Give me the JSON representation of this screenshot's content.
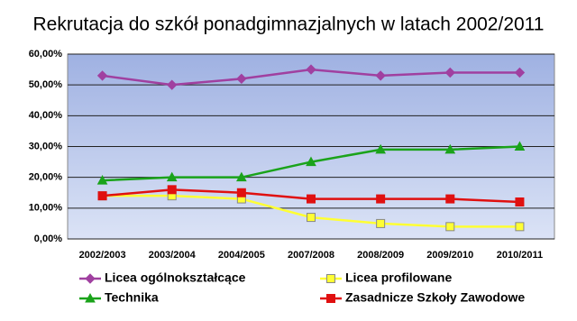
{
  "chart_data": {
    "type": "line",
    "title": "Rekrutacja  do szkół  ponadgimnazjalnych  w latach  2002/2011",
    "categories": [
      "2002/2003",
      "2003/2004",
      "2004/2005",
      "2007/2008",
      "2008/2009",
      "2009/2010",
      "2010/2011"
    ],
    "series": [
      {
        "name": "Licea ogólnokształcące",
        "color": "#a040a0",
        "marker": "diamond",
        "values": [
          53,
          50,
          52,
          55,
          53,
          54,
          54
        ]
      },
      {
        "name": "Licea profilowane",
        "color": "#ffff33",
        "marker": "square",
        "values": [
          14,
          14,
          13,
          7,
          5,
          4,
          4
        ]
      },
      {
        "name": "Technika",
        "color": "#1aa31a",
        "marker": "triangle",
        "values": [
          19,
          20,
          20,
          25,
          29,
          29,
          30
        ]
      },
      {
        "name": "Zasadnicze Szkoły Zawodowe",
        "color": "#e01010",
        "marker": "square",
        "values": [
          14,
          16,
          15,
          13,
          13,
          13,
          12
        ]
      }
    ],
    "ylim": [
      0,
      60
    ],
    "yticks": [
      {
        "value": 0,
        "label": "0,00%"
      },
      {
        "value": 10,
        "label": "10,00%"
      },
      {
        "value": 20,
        "label": "20,00%"
      },
      {
        "value": 30,
        "label": "30,00%"
      },
      {
        "value": 40,
        "label": "40,00%"
      },
      {
        "value": 50,
        "label": "50,00%"
      },
      {
        "value": 60,
        "label": "60,00%"
      }
    ],
    "grid": true
  }
}
